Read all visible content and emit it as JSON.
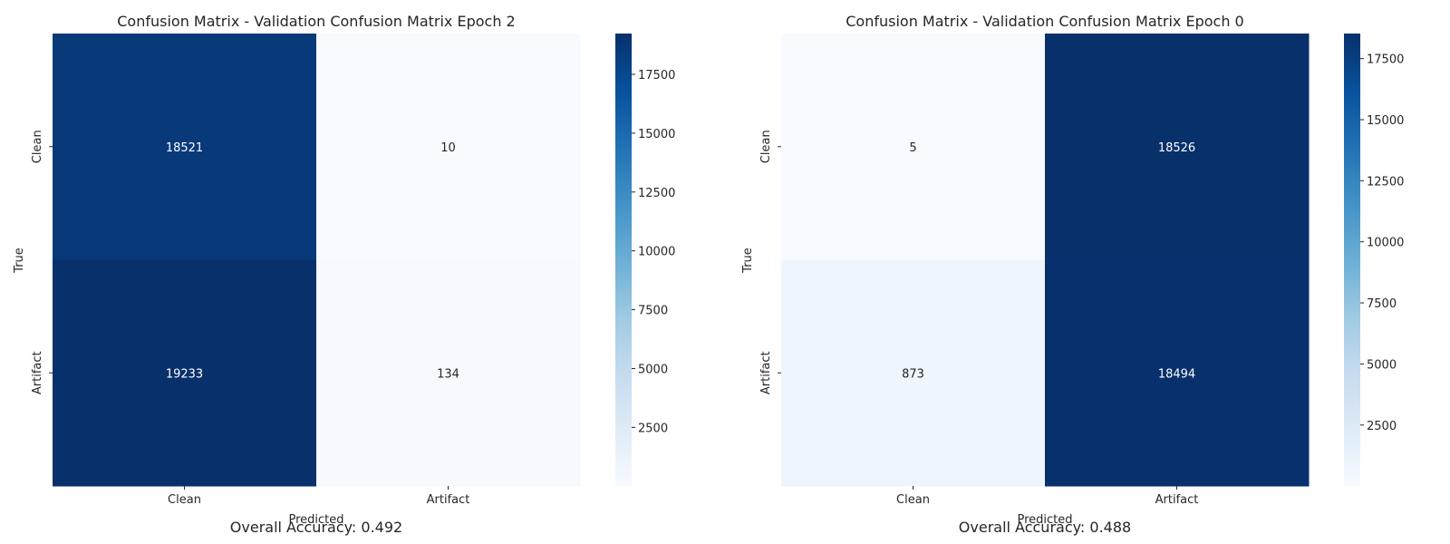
{
  "chart_data": [
    {
      "type": "heatmap",
      "title": "Confusion Matrix - Validation Confusion Matrix Epoch 2",
      "xlabel": "Predicted",
      "ylabel": "True",
      "x_categories": [
        "Clean",
        "Artifact"
      ],
      "y_categories": [
        "Clean",
        "Artifact"
      ],
      "values": [
        [
          18521,
          10
        ],
        [
          19233,
          134
        ]
      ],
      "colormap": "Blues",
      "color_range": [
        10,
        19233
      ],
      "colorbar_ticks": [
        2500,
        5000,
        7500,
        10000,
        12500,
        15000,
        17500
      ],
      "footer": "Overall Accuracy: 0.492"
    },
    {
      "type": "heatmap",
      "title": "Confusion Matrix - Validation Confusion Matrix Epoch 0",
      "xlabel": "Predicted",
      "ylabel": "True",
      "x_categories": [
        "Clean",
        "Artifact"
      ],
      "y_categories": [
        "Clean",
        "Artifact"
      ],
      "values": [
        [
          5,
          18526
        ],
        [
          873,
          18494
        ]
      ],
      "colormap": "Blues",
      "color_range": [
        5,
        18526
      ],
      "colorbar_ticks": [
        2500,
        5000,
        7500,
        10000,
        12500,
        15000,
        17500
      ],
      "footer": "Overall Accuracy: 0.488"
    }
  ]
}
